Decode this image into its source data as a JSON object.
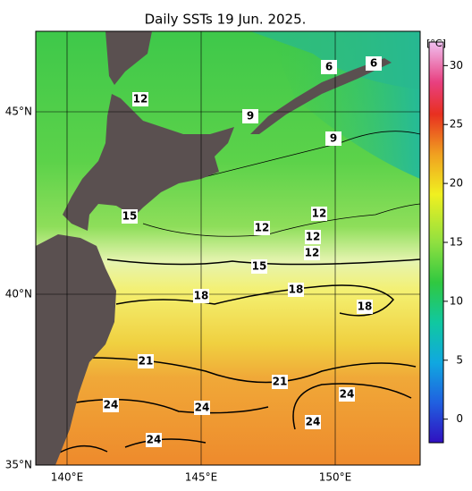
{
  "map": {
    "title": "Daily SSTs 19 Jun. 2025.",
    "lon_labels": [
      "140°E",
      "145°E",
      "150°E"
    ],
    "lat_labels": [
      "45°N",
      "40°N",
      "35°N"
    ],
    "colorbar": {
      "unit": "[°C]",
      "lim": [
        -2,
        32
      ],
      "ticks": [
        0,
        5,
        10,
        15,
        20,
        25,
        30
      ]
    },
    "contour_labels": [
      6,
      6,
      12,
      9,
      9,
      15,
      12,
      12,
      12,
      12,
      15,
      18,
      18,
      18,
      21,
      21,
      24,
      24,
      24,
      24,
      24
    ]
  }
}
